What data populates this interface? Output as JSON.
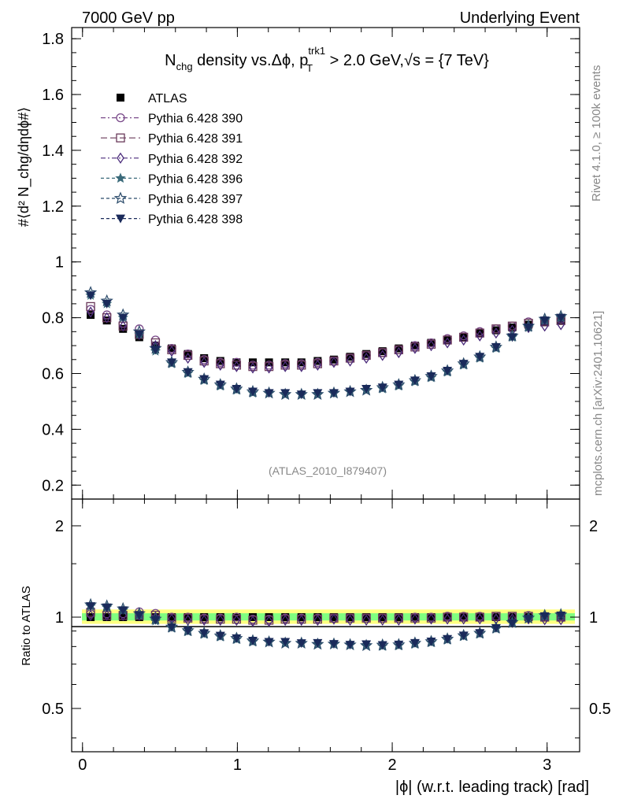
{
  "header": {
    "left": "7000 GeV pp",
    "right": "Underlying Event"
  },
  "side_labels": {
    "rivet": "Rivet 4.1.0, ≥ 100k events",
    "mcplots": "mcplots.cern.ch [arXiv:2401.10621]"
  },
  "colors": {
    "atlas": "#000000",
    "band_yellow": "#ffff80",
    "band_green": "#80ff80",
    "p390": "#7a4a8a",
    "p391": "#6a3a5a",
    "p392": "#4a2a7a",
    "p396": "#3a6a7a",
    "p397": "#2a4a6a",
    "p398": "#1a2a5a"
  },
  "chart_data": [
    {
      "panel": "main",
      "type": "scatter",
      "title": {
        "pre": "N",
        "sub1": "chg",
        "mid": " density vs.Δϕ, p",
        "sup2": "trk1",
        "sub2": "T",
        "post": " > 2.0 GeV,",
        "sqrt": "√s",
        "end": " = {7 TeV}"
      },
      "ylabel": "#⟨d² N_chg/dηdϕ#⟩",
      "ylim": [
        0.15,
        1.84
      ],
      "yticks": [
        "0.2",
        "0.4",
        "0.6",
        "0.8",
        "1",
        "1.2",
        "1.4",
        "1.6",
        "1.8"
      ],
      "xlim": [
        -0.07,
        3.21
      ],
      "watermark": "(ATLAS_2010_I879407)",
      "legend": [
        "ATLAS",
        "Pythia 6.428 390",
        "Pythia 6.428 391",
        "Pythia 6.428 392",
        "Pythia 6.428 396",
        "Pythia 6.428 397",
        "Pythia 6.428 398"
      ],
      "x": [
        0.0524,
        0.1571,
        0.2618,
        0.3665,
        0.4712,
        0.576,
        0.6807,
        0.7854,
        0.8901,
        0.9948,
        1.0996,
        1.2043,
        1.309,
        1.4137,
        1.5184,
        1.6232,
        1.7279,
        1.8326,
        1.9373,
        2.042,
        2.1468,
        2.2515,
        2.3562,
        2.4609,
        2.5656,
        2.6704,
        2.7751,
        2.8798,
        2.9845,
        3.0892
      ],
      "series": [
        {
          "name": "ATLAS",
          "values": [
            0.81,
            0.79,
            0.76,
            0.73,
            0.7,
            0.69,
            0.67,
            0.655,
            0.645,
            0.64,
            0.64,
            0.64,
            0.64,
            0.64,
            0.645,
            0.65,
            0.66,
            0.67,
            0.68,
            0.69,
            0.7,
            0.71,
            0.72,
            0.73,
            0.745,
            0.755,
            0.765,
            0.775,
            0.785,
            0.79
          ]
        },
        {
          "name": "Pythia 6.428 390",
          "values": [
            0.83,
            0.81,
            0.78,
            0.76,
            0.72,
            0.69,
            0.67,
            0.65,
            0.64,
            0.64,
            0.63,
            0.63,
            0.635,
            0.635,
            0.64,
            0.645,
            0.655,
            0.665,
            0.675,
            0.685,
            0.7,
            0.71,
            0.725,
            0.735,
            0.75,
            0.76,
            0.77,
            0.785,
            0.79,
            0.795
          ]
        },
        {
          "name": "Pythia 6.428 391",
          "values": [
            0.84,
            0.8,
            0.77,
            0.74,
            0.71,
            0.685,
            0.665,
            0.645,
            0.635,
            0.63,
            0.625,
            0.625,
            0.63,
            0.63,
            0.635,
            0.645,
            0.655,
            0.665,
            0.675,
            0.685,
            0.695,
            0.705,
            0.72,
            0.73,
            0.745,
            0.76,
            0.77,
            0.78,
            0.785,
            0.79
          ]
        },
        {
          "name": "Pythia 6.428 392",
          "values": [
            0.82,
            0.8,
            0.77,
            0.74,
            0.7,
            0.68,
            0.655,
            0.64,
            0.63,
            0.625,
            0.62,
            0.62,
            0.625,
            0.625,
            0.63,
            0.64,
            0.645,
            0.655,
            0.665,
            0.675,
            0.69,
            0.7,
            0.71,
            0.72,
            0.735,
            0.745,
            0.755,
            0.765,
            0.77,
            0.775
          ]
        },
        {
          "name": "Pythia 6.428 396",
          "values": [
            0.88,
            0.85,
            0.8,
            0.74,
            0.68,
            0.635,
            0.6,
            0.575,
            0.555,
            0.54,
            0.53,
            0.53,
            0.525,
            0.525,
            0.525,
            0.53,
            0.535,
            0.54,
            0.545,
            0.555,
            0.57,
            0.585,
            0.605,
            0.63,
            0.655,
            0.69,
            0.73,
            0.765,
            0.79,
            0.8
          ]
        },
        {
          "name": "Pythia 6.428 397",
          "values": [
            0.89,
            0.86,
            0.81,
            0.75,
            0.69,
            0.64,
            0.605,
            0.58,
            0.56,
            0.545,
            0.535,
            0.53,
            0.525,
            0.525,
            0.525,
            0.53,
            0.535,
            0.54,
            0.55,
            0.56,
            0.575,
            0.59,
            0.61,
            0.635,
            0.66,
            0.695,
            0.735,
            0.77,
            0.795,
            0.805
          ]
        },
        {
          "name": "Pythia 6.428 398",
          "values": [
            0.88,
            0.85,
            0.8,
            0.74,
            0.685,
            0.64,
            0.605,
            0.58,
            0.56,
            0.545,
            0.535,
            0.53,
            0.53,
            0.525,
            0.53,
            0.53,
            0.535,
            0.545,
            0.55,
            0.56,
            0.575,
            0.59,
            0.61,
            0.635,
            0.66,
            0.695,
            0.73,
            0.765,
            0.79,
            0.8
          ]
        }
      ]
    },
    {
      "panel": "ratio",
      "type": "scatter",
      "ylabel": "Ratio to ATLAS",
      "xlabel": "|ϕ| (w.r.t. leading track) [rad]",
      "yscale": "log",
      "ylim": [
        0.36,
        2.45
      ],
      "yticks": [
        "0.5",
        "1",
        "2"
      ],
      "xticks": [
        "0",
        "1",
        "2",
        "3"
      ],
      "xlim": [
        -0.07,
        3.21
      ],
      "band": {
        "yellow": [
          0.95,
          1.06
        ],
        "green": [
          0.975,
          1.03
        ]
      }
    }
  ]
}
